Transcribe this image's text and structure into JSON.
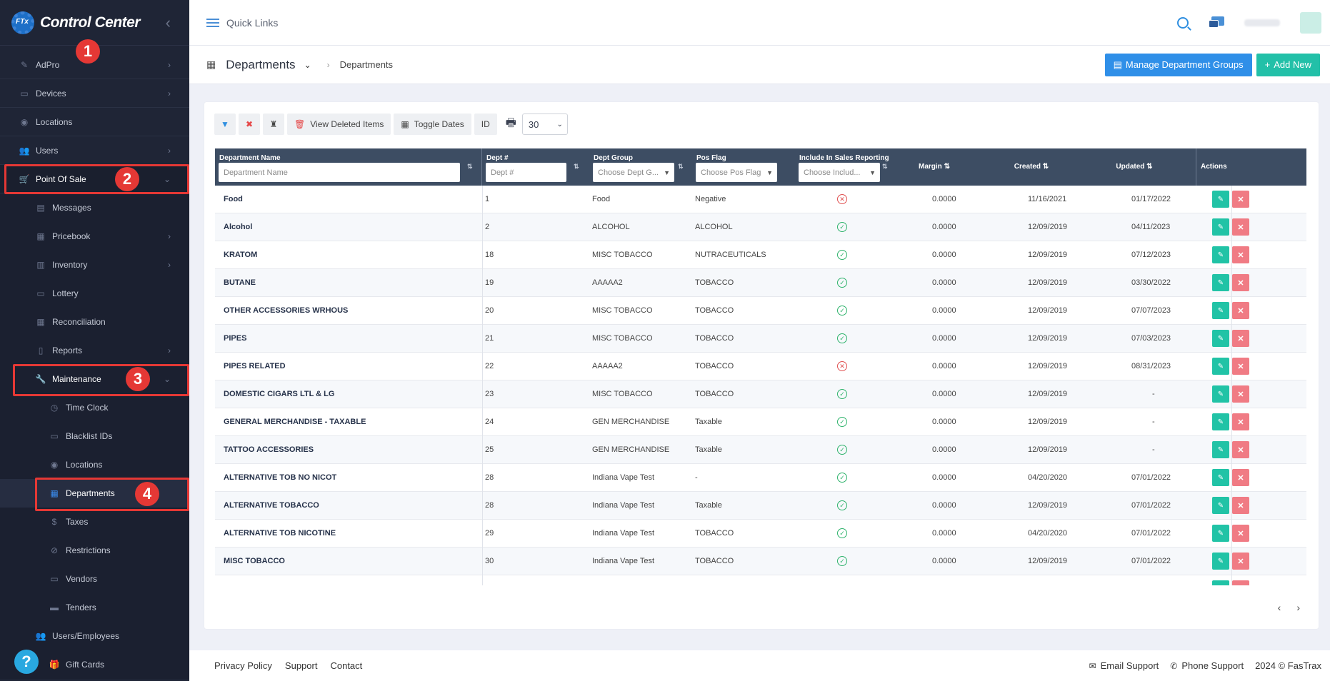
{
  "brand": {
    "name": "Control Center",
    "logo_text": "FTx"
  },
  "sidebar": {
    "items": [
      {
        "label": "AdPro",
        "icon": "brush-icon",
        "chevron": "›"
      },
      {
        "label": "Devices",
        "icon": "device-icon",
        "chevron": "›"
      },
      {
        "label": "Locations",
        "icon": "pin-icon",
        "chevron": ""
      },
      {
        "label": "Users",
        "icon": "users-icon",
        "chevron": "›"
      },
      {
        "label": "Point Of Sale",
        "icon": "cart-icon",
        "chevron": "⌄"
      }
    ],
    "pos_items": [
      {
        "label": "Messages",
        "icon": "message-icon",
        "chevron": ""
      },
      {
        "label": "Pricebook",
        "icon": "calculator-icon",
        "chevron": "›"
      },
      {
        "label": "Inventory",
        "icon": "inventory-icon",
        "chevron": "›"
      },
      {
        "label": "Lottery",
        "icon": "lottery-icon",
        "chevron": ""
      },
      {
        "label": "Reconciliation",
        "icon": "grid-icon",
        "chevron": ""
      },
      {
        "label": "Reports",
        "icon": "chart-icon",
        "chevron": "›"
      },
      {
        "label": "Maintenance",
        "icon": "wrench-icon",
        "chevron": "⌄"
      }
    ],
    "maint_items": [
      {
        "label": "Time Clock",
        "icon": "clock-icon"
      },
      {
        "label": "Blacklist IDs",
        "icon": "id-card-icon"
      },
      {
        "label": "Locations",
        "icon": "pin-icon"
      },
      {
        "label": "Departments",
        "icon": "building-icon"
      },
      {
        "label": "Taxes",
        "icon": "dollar-icon"
      },
      {
        "label": "Restrictions",
        "icon": "ban-icon"
      },
      {
        "label": "Vendors",
        "icon": "vendor-icon"
      },
      {
        "label": "Tenders",
        "icon": "money-icon"
      },
      {
        "label": "Users/Employees",
        "icon": "users-icon"
      },
      {
        "label": "Gift Cards",
        "icon": "gift-icon"
      }
    ],
    "badges": [
      "1",
      "2",
      "3",
      "4"
    ],
    "help": "?"
  },
  "topbar": {
    "quick_links": "Quick Links"
  },
  "subheader": {
    "title": "Departments",
    "breadcrumb": "Departments",
    "manage_btn": "Manage Department Groups",
    "add_btn": "Add New"
  },
  "toolbar": {
    "view_deleted": "View Deleted Items",
    "toggle_dates": "Toggle Dates",
    "id": "ID",
    "page_size": "30"
  },
  "table": {
    "columns": {
      "name": "Department Name",
      "name_ph": "Department Name",
      "num": "Dept #",
      "num_ph": "Dept #",
      "group": "Dept Group",
      "group_ph": "Choose Dept G...",
      "flag": "Pos Flag",
      "flag_ph": "Choose Pos Flag",
      "include": "Include In Sales Reporting",
      "include_ph": "Choose Includ...",
      "margin": "Margin",
      "created": "Created",
      "updated": "Updated",
      "actions": "Actions"
    },
    "rows": [
      {
        "name": "Food",
        "num": "1",
        "group": "Food",
        "flag": "Negative",
        "include": false,
        "margin": "0.0000",
        "created": "11/16/2021",
        "updated": "01/17/2022"
      },
      {
        "name": "Alcohol",
        "num": "2",
        "group": "ALCOHOL",
        "flag": "ALCOHOL",
        "include": true,
        "margin": "0.0000",
        "created": "12/09/2019",
        "updated": "04/11/2023"
      },
      {
        "name": "KRATOM",
        "num": "18",
        "group": "MISC TOBACCO",
        "flag": "NUTRACEUTICALS",
        "include": true,
        "margin": "0.0000",
        "created": "12/09/2019",
        "updated": "07/12/2023"
      },
      {
        "name": "BUTANE",
        "num": "19",
        "group": "AAAAA2",
        "flag": "TOBACCO",
        "include": true,
        "margin": "0.0000",
        "created": "12/09/2019",
        "updated": "03/30/2022"
      },
      {
        "name": "OTHER ACCESSORIES WRHOUS",
        "num": "20",
        "group": "MISC TOBACCO",
        "flag": "TOBACCO",
        "include": true,
        "margin": "0.0000",
        "created": "12/09/2019",
        "updated": "07/07/2023"
      },
      {
        "name": "PIPES",
        "num": "21",
        "group": "MISC TOBACCO",
        "flag": "TOBACCO",
        "include": true,
        "margin": "0.0000",
        "created": "12/09/2019",
        "updated": "07/03/2023"
      },
      {
        "name": "PIPES RELATED",
        "num": "22",
        "group": "AAAAA2",
        "flag": "TOBACCO",
        "include": false,
        "margin": "0.0000",
        "created": "12/09/2019",
        "updated": "08/31/2023"
      },
      {
        "name": "DOMESTIC CIGARS LTL & LG",
        "num": "23",
        "group": "MISC TOBACCO",
        "flag": "TOBACCO",
        "include": true,
        "margin": "0.0000",
        "created": "12/09/2019",
        "updated": "-"
      },
      {
        "name": "GENERAL MERCHANDISE - TAXABLE",
        "num": "24",
        "group": "GEN MERCHANDISE",
        "flag": "Taxable",
        "include": true,
        "margin": "0.0000",
        "created": "12/09/2019",
        "updated": "-"
      },
      {
        "name": "TATTOO ACCESSORIES",
        "num": "25",
        "group": "GEN MERCHANDISE",
        "flag": "Taxable",
        "include": true,
        "margin": "0.0000",
        "created": "12/09/2019",
        "updated": "-"
      },
      {
        "name": "ALTERNATIVE TOB NO NICOT",
        "num": "28",
        "group": "Indiana Vape Test",
        "flag": "-",
        "include": true,
        "margin": "0.0000",
        "created": "04/20/2020",
        "updated": "07/01/2022"
      },
      {
        "name": "ALTERNATIVE TOBACCO",
        "num": "28",
        "group": "Indiana Vape Test",
        "flag": "Taxable",
        "include": true,
        "margin": "0.0000",
        "created": "12/09/2019",
        "updated": "07/01/2022"
      },
      {
        "name": "ALTERNATIVE TOB NICOTINE",
        "num": "29",
        "group": "Indiana Vape Test",
        "flag": "TOBACCO",
        "include": true,
        "margin": "0.0000",
        "created": "04/20/2020",
        "updated": "07/01/2022"
      },
      {
        "name": "MISC TOBACCO",
        "num": "30",
        "group": "Indiana Vape Test",
        "flag": "TOBACCO",
        "include": true,
        "margin": "0.0000",
        "created": "12/09/2019",
        "updated": "07/01/2022"
      }
    ]
  },
  "footer": {
    "privacy": "Privacy Policy",
    "support": "Support",
    "contact": "Contact",
    "email": "Email Support",
    "phone": "Phone Support",
    "copyright": "2024 © FasTrax"
  },
  "colors": {
    "sidebar": "#1f2536",
    "accent": "#2f8fe8",
    "teal": "#22c0a8",
    "highlight": "#e53835"
  }
}
